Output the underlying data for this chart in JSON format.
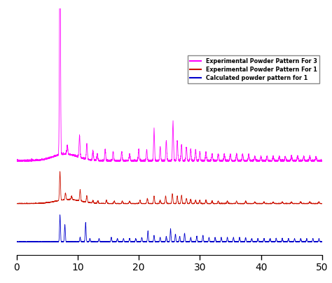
{
  "title": "",
  "xlabel": "",
  "ylabel": "",
  "xlim": [
    0,
    50
  ],
  "ylim": [
    -0.1,
    2.8
  ],
  "xticks": [
    0,
    10,
    20,
    30,
    40,
    50
  ],
  "colors": {
    "magenta": "#FF00FF",
    "red": "#CC1100",
    "blue": "#0000CC"
  },
  "legend_labels": [
    "Experimental Powder Pattern For 3",
    "Experimental Powder Pattern For 1",
    "Calculated powder pattern for 1"
  ],
  "offsets": [
    1.0,
    0.5,
    0.05
  ],
  "background": "#FFFFFF",
  "peak_max_mag": 2.7,
  "peak_max_red": 0.38,
  "peak_max_blue": 0.32
}
